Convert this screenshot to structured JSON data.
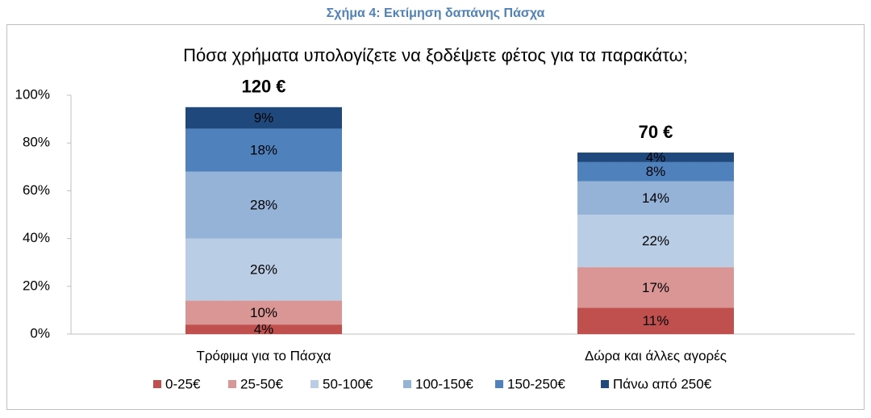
{
  "chart_data": {
    "type": "stacked_bar",
    "caption": "Σχήμα 4: Εκτίμηση δαπάνης Πάσχα",
    "title": "Πόσα χρήματα υπολογίζετε να ξοδέψετε φέτος για τα παρακάτω;",
    "categories": [
      "Τρόφιμα για το Πάσχα",
      "Δώρα και άλλες αγορές"
    ],
    "annotations": [
      "120 €",
      "70 €"
    ],
    "series": [
      {
        "name": "0-25€",
        "color": "#c0504d",
        "values": [
          4,
          11
        ],
        "value_labels": [
          "4%",
          "11%"
        ]
      },
      {
        "name": "25-50€",
        "color": "#d99694",
        "values": [
          10,
          17
        ],
        "value_labels": [
          "10%",
          "17%"
        ]
      },
      {
        "name": "50-100€",
        "color": "#b9cde5",
        "values": [
          26,
          22
        ],
        "value_labels": [
          "26%",
          "22%"
        ]
      },
      {
        "name": "100-150€",
        "color": "#95b3d7",
        "values": [
          28,
          14
        ],
        "value_labels": [
          "28%",
          "14%"
        ]
      },
      {
        "name": "150-250€",
        "color": "#4f81bd",
        "values": [
          18,
          8
        ],
        "value_labels": [
          "18%",
          "8%"
        ]
      },
      {
        "name": "Πάνω από 250€",
        "color": "#1f497d",
        "values": [
          9,
          4
        ],
        "value_labels": [
          "9%",
          "4%"
        ]
      }
    ],
    "ylim": [
      0,
      100
    ],
    "yticks": [
      {
        "value": 0,
        "label": "0%"
      },
      {
        "value": 20,
        "label": "20%"
      },
      {
        "value": 40,
        "label": "40%"
      },
      {
        "value": 60,
        "label": "60%"
      },
      {
        "value": 80,
        "label": "80%"
      },
      {
        "value": 100,
        "label": "100%"
      }
    ],
    "legend": "bottom"
  }
}
